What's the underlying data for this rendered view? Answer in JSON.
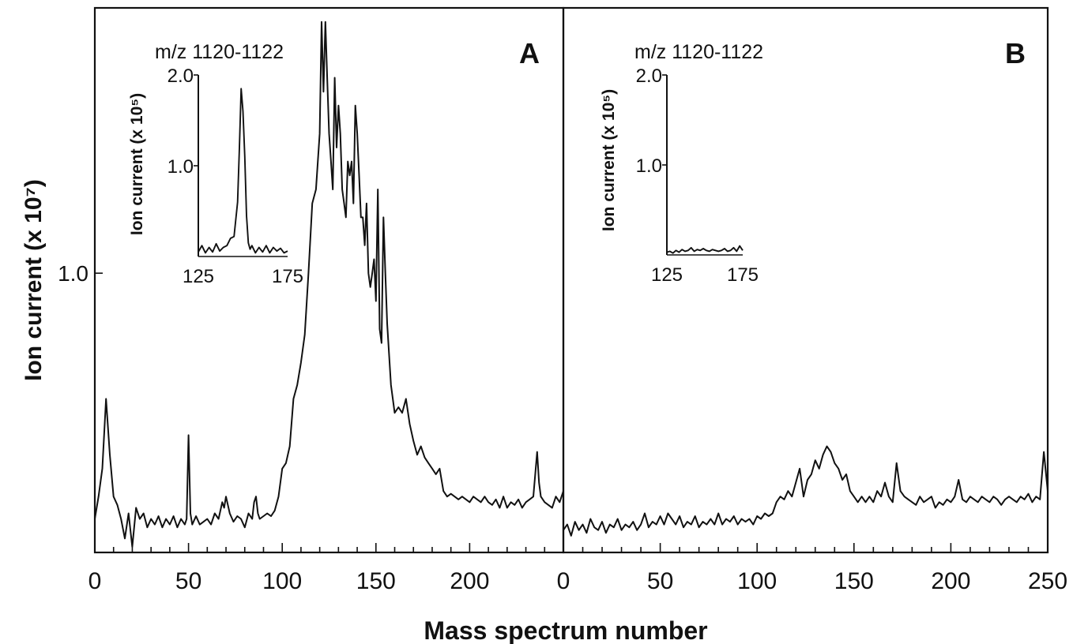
{
  "chart_data": {
    "type": "line",
    "xlabel": "Mass spectrum number",
    "ylabel": "Ion current (x 10⁷)",
    "panels": [
      {
        "label": "A",
        "xlim": [
          0,
          250
        ],
        "ylim": [
          0,
          1.95
        ],
        "x_ticks": [
          0,
          50,
          100,
          150,
          200
        ],
        "y_ticks": [
          {
            "value": 1.0,
            "label": "1.0"
          }
        ],
        "x": [
          0,
          2,
          4,
          6,
          8,
          10,
          12,
          14,
          16,
          18,
          20,
          22,
          24,
          26,
          28,
          30,
          32,
          34,
          36,
          38,
          40,
          42,
          44,
          46,
          48,
          49,
          50,
          51,
          52,
          54,
          56,
          58,
          60,
          62,
          64,
          66,
          68,
          69,
          70,
          71,
          72,
          74,
          76,
          78,
          80,
          82,
          84,
          85,
          86,
          87,
          88,
          90,
          92,
          94,
          96,
          98,
          100,
          102,
          104,
          106,
          108,
          110,
          112,
          114,
          116,
          118,
          120,
          121,
          122,
          123,
          124,
          125,
          126,
          127,
          128,
          129,
          130,
          131,
          132,
          133,
          134,
          135,
          136,
          137,
          138,
          139,
          140,
          141,
          142,
          143,
          144,
          145,
          146,
          147,
          148,
          149,
          150,
          151,
          152,
          153,
          154,
          155,
          156,
          158,
          160,
          162,
          164,
          166,
          168,
          170,
          172,
          174,
          176,
          178,
          180,
          182,
          184,
          186,
          188,
          190,
          192,
          194,
          196,
          198,
          200,
          202,
          204,
          206,
          208,
          210,
          212,
          214,
          216,
          218,
          220,
          222,
          224,
          226,
          228,
          230,
          232,
          234,
          235,
          236,
          237,
          238,
          240,
          242,
          244,
          246,
          248,
          250
        ],
        "y": [
          0.12,
          0.2,
          0.3,
          0.55,
          0.35,
          0.2,
          0.17,
          0.12,
          0.05,
          0.14,
          0.02,
          0.16,
          0.12,
          0.14,
          0.09,
          0.12,
          0.1,
          0.13,
          0.09,
          0.12,
          0.1,
          0.13,
          0.09,
          0.12,
          0.1,
          0.12,
          0.42,
          0.14,
          0.1,
          0.13,
          0.1,
          0.11,
          0.12,
          0.1,
          0.14,
          0.12,
          0.18,
          0.16,
          0.2,
          0.17,
          0.14,
          0.11,
          0.13,
          0.12,
          0.09,
          0.14,
          0.12,
          0.18,
          0.2,
          0.14,
          0.12,
          0.13,
          0.14,
          0.13,
          0.15,
          0.2,
          0.3,
          0.32,
          0.38,
          0.55,
          0.6,
          0.68,
          0.78,
          1.0,
          1.25,
          1.3,
          1.5,
          1.9,
          1.65,
          1.9,
          1.7,
          1.5,
          1.4,
          1.3,
          1.7,
          1.45,
          1.6,
          1.5,
          1.3,
          1.25,
          1.2,
          1.4,
          1.35,
          1.4,
          1.25,
          1.6,
          1.5,
          1.35,
          1.2,
          1.2,
          1.1,
          1.25,
          1.0,
          0.95,
          1.0,
          1.05,
          0.9,
          1.3,
          0.8,
          0.75,
          1.2,
          1.0,
          0.82,
          0.6,
          0.5,
          0.52,
          0.5,
          0.55,
          0.46,
          0.4,
          0.35,
          0.38,
          0.34,
          0.32,
          0.3,
          0.28,
          0.3,
          0.22,
          0.2,
          0.21,
          0.2,
          0.19,
          0.2,
          0.19,
          0.18,
          0.2,
          0.19,
          0.18,
          0.2,
          0.18,
          0.17,
          0.19,
          0.16,
          0.2,
          0.16,
          0.18,
          0.17,
          0.19,
          0.16,
          0.18,
          0.19,
          0.2,
          0.28,
          0.36,
          0.25,
          0.2,
          0.18,
          0.17,
          0.16,
          0.2,
          0.18,
          0.22
        ]
      },
      {
        "label": "B",
        "xlim": [
          0,
          250
        ],
        "ylim": [
          0,
          1.95
        ],
        "x_ticks": [
          0,
          50,
          100,
          150,
          200,
          250
        ],
        "x": [
          0,
          2,
          4,
          6,
          8,
          10,
          12,
          14,
          16,
          18,
          20,
          22,
          24,
          26,
          28,
          30,
          32,
          34,
          36,
          38,
          40,
          42,
          44,
          46,
          48,
          50,
          52,
          54,
          56,
          58,
          60,
          62,
          64,
          66,
          68,
          70,
          72,
          74,
          76,
          78,
          80,
          82,
          84,
          86,
          88,
          90,
          92,
          94,
          96,
          98,
          100,
          102,
          104,
          106,
          108,
          110,
          112,
          114,
          116,
          118,
          120,
          122,
          124,
          126,
          128,
          130,
          132,
          134,
          136,
          138,
          140,
          142,
          144,
          146,
          148,
          150,
          152,
          154,
          156,
          158,
          160,
          162,
          164,
          166,
          168,
          170,
          172,
          174,
          176,
          178,
          180,
          182,
          184,
          186,
          188,
          190,
          192,
          194,
          196,
          198,
          200,
          202,
          204,
          206,
          208,
          210,
          212,
          214,
          216,
          218,
          220,
          222,
          224,
          226,
          228,
          230,
          232,
          234,
          236,
          238,
          240,
          242,
          244,
          246,
          248,
          250
        ],
        "y": [
          0.08,
          0.1,
          0.06,
          0.11,
          0.08,
          0.1,
          0.07,
          0.12,
          0.09,
          0.08,
          0.11,
          0.07,
          0.1,
          0.09,
          0.12,
          0.08,
          0.1,
          0.09,
          0.11,
          0.08,
          0.1,
          0.14,
          0.09,
          0.11,
          0.1,
          0.13,
          0.1,
          0.14,
          0.12,
          0.1,
          0.13,
          0.09,
          0.11,
          0.1,
          0.13,
          0.09,
          0.11,
          0.1,
          0.12,
          0.1,
          0.14,
          0.1,
          0.12,
          0.11,
          0.13,
          0.1,
          0.12,
          0.11,
          0.12,
          0.1,
          0.13,
          0.12,
          0.14,
          0.13,
          0.14,
          0.18,
          0.2,
          0.19,
          0.22,
          0.2,
          0.25,
          0.3,
          0.2,
          0.26,
          0.28,
          0.33,
          0.3,
          0.35,
          0.38,
          0.36,
          0.32,
          0.3,
          0.26,
          0.28,
          0.22,
          0.2,
          0.18,
          0.2,
          0.18,
          0.2,
          0.18,
          0.22,
          0.2,
          0.25,
          0.2,
          0.18,
          0.32,
          0.22,
          0.2,
          0.19,
          0.18,
          0.17,
          0.2,
          0.18,
          0.19,
          0.2,
          0.16,
          0.18,
          0.17,
          0.19,
          0.18,
          0.2,
          0.26,
          0.19,
          0.18,
          0.2,
          0.19,
          0.18,
          0.2,
          0.19,
          0.18,
          0.2,
          0.19,
          0.17,
          0.19,
          0.2,
          0.19,
          0.18,
          0.2,
          0.19,
          0.21,
          0.18,
          0.2,
          0.19,
          0.36,
          0.22
        ]
      }
    ],
    "insets": [
      {
        "panel": "A",
        "title": "m/z 1120-1122",
        "ylabel": "Ion current (x 10⁵)",
        "xlim": [
          125,
          175
        ],
        "ylim": [
          0,
          2.0
        ],
        "x_ticks": [
          125,
          175
        ],
        "y_ticks": [
          {
            "value": 1.0,
            "label": "1.0"
          },
          {
            "value": 2.0,
            "label": "2.0"
          }
        ],
        "x": [
          125,
          127,
          129,
          131,
          133,
          135,
          137,
          139,
          141,
          143,
          145,
          147,
          148,
          149,
          150,
          151,
          152,
          153,
          154,
          155,
          157,
          159,
          161,
          163,
          165,
          167,
          169,
          171,
          173,
          175
        ],
        "y": [
          0.05,
          0.12,
          0.04,
          0.1,
          0.05,
          0.14,
          0.06,
          0.1,
          0.12,
          0.2,
          0.22,
          0.6,
          1.2,
          1.85,
          1.6,
          1.1,
          0.45,
          0.15,
          0.08,
          0.12,
          0.04,
          0.1,
          0.05,
          0.12,
          0.04,
          0.1,
          0.06,
          0.09,
          0.04,
          0.06
        ]
      },
      {
        "panel": "B",
        "title": "m/z 1120-1122",
        "ylabel": "Ion current (x 10⁵)",
        "xlim": [
          125,
          175
        ],
        "ylim": [
          0,
          2.0
        ],
        "x_ticks": [
          125,
          175
        ],
        "y_ticks": [
          {
            "value": 1.0,
            "label": "1.0"
          },
          {
            "value": 2.0,
            "label": "2.0"
          }
        ],
        "x": [
          125,
          127,
          129,
          131,
          133,
          135,
          137,
          139,
          141,
          143,
          145,
          147,
          149,
          151,
          153,
          155,
          157,
          159,
          161,
          163,
          165,
          167,
          169,
          171,
          173,
          175
        ],
        "y": [
          0.03,
          0.04,
          0.02,
          0.05,
          0.03,
          0.06,
          0.04,
          0.05,
          0.08,
          0.04,
          0.06,
          0.05,
          0.07,
          0.05,
          0.04,
          0.06,
          0.05,
          0.04,
          0.05,
          0.07,
          0.04,
          0.05,
          0.08,
          0.04,
          0.1,
          0.05
        ]
      }
    ]
  }
}
